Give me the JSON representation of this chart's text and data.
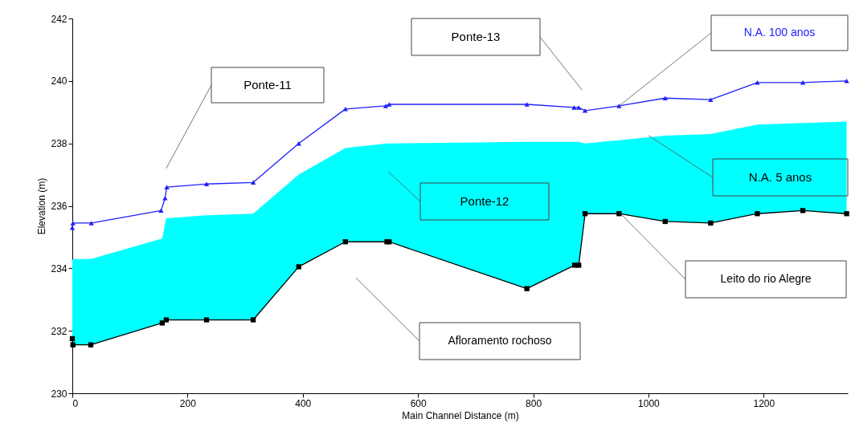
{
  "chart_data": {
    "type": "line",
    "xlabel": "Main Channel Distance (m)",
    "ylabel": "Elevation (m)",
    "xlim": [
      0,
      1346
    ],
    "xticks": [
      0,
      200,
      400,
      600,
      800,
      {
        "value": 1000,
        "label": "1000"
      },
      {
        "value": 1200,
        "label": "1200"
      }
    ],
    "ylim": [
      230,
      242
    ],
    "yticks": [
      230,
      232,
      234,
      236,
      238,
      240,
      242
    ],
    "grid": false,
    "legend": false,
    "line_style": "solid",
    "series": [
      {
        "name": "N.A. 100 anos",
        "marker": "triangle",
        "color": "#2020ff",
        "x": [
          0,
          1,
          33,
          154,
          161,
          164,
          233,
          314,
          393,
          474,
          544,
          550,
          789,
          871,
          879,
          890,
          949,
          1029,
          1108,
          1189,
          1268,
          1344
        ],
        "values": [
          235.3,
          235.45,
          235.45,
          235.85,
          236.25,
          236.6,
          236.7,
          236.75,
          238.0,
          239.1,
          239.2,
          239.25,
          239.25,
          239.15,
          239.15,
          239.05,
          239.2,
          239.45,
          239.4,
          239.95,
          239.95,
          240.0
        ]
      },
      {
        "name": "N.A. 5 anos",
        "type": "area",
        "color": "#00ffff",
        "x": [
          0,
          1,
          32,
          156,
          163,
          233,
          314,
          393,
          474,
          546,
          550,
          789,
          872,
          879,
          890,
          949,
          1029,
          1108,
          1189,
          1268,
          1344
        ],
        "values": [
          234.25,
          234.3,
          234.3,
          234.95,
          235.6,
          235.7,
          235.75,
          237.0,
          237.85,
          238.0,
          238.0,
          238.05,
          238.05,
          238.05,
          238.0,
          238.1,
          238.25,
          238.3,
          238.6,
          238.65,
          238.7
        ]
      },
      {
        "name": "Leito do rio Alegre",
        "marker": "square",
        "color": "#000000",
        "x": [
          0,
          1,
          32,
          156,
          163,
          233,
          314,
          393,
          474,
          546,
          550,
          789,
          872,
          879,
          890,
          949,
          1029,
          1108,
          1189,
          1268,
          1344
        ],
        "values": [
          231.75,
          231.55,
          231.55,
          232.25,
          232.35,
          232.35,
          232.35,
          234.05,
          234.85,
          234.85,
          234.85,
          233.35,
          234.1,
          234.1,
          235.75,
          235.75,
          235.5,
          235.45,
          235.75,
          235.85,
          235.75
        ]
      }
    ],
    "annotations": [
      "Ponte-11",
      "Ponte-12",
      "Ponte-13",
      "Afloramento rochoso"
    ]
  }
}
